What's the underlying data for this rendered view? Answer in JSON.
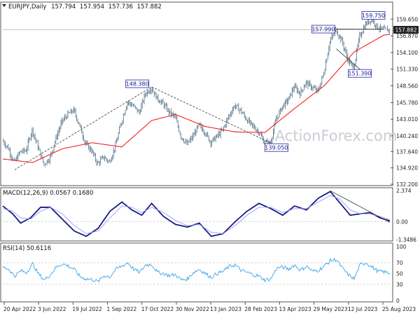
{
  "symbol_header": {
    "symbol": "EURJPY,Daily",
    "open": "157.794",
    "high": "157.954",
    "low": "157.736",
    "close": "157.882"
  },
  "watermark": "ActionForex.com",
  "colors": {
    "candle": "#4a6a80",
    "moving_average": "#ee2222",
    "macd_line": "#1a1a80",
    "signal_line": "#9a9aff",
    "rsi_line": "#3ba5e8",
    "trendline": "#333333",
    "label_border": "#2222aa",
    "label_text": "#1a1a8a",
    "grid_dash": "#cccccc",
    "current_price_box": "#222222"
  },
  "chart_data": [
    {
      "type": "candlestick",
      "panel": "price",
      "interval": "Daily",
      "ylim": [
        132.2,
        161.2
      ],
      "y_ticks": [
        "159.650",
        "156.870",
        "154.100",
        "151.330",
        "148.560",
        "145.780",
        "143.010",
        "140.240",
        "137.640",
        "134.920",
        "132.200"
      ],
      "x_ticks": [
        "20 Apr 2022",
        "3 Jun 2022",
        "19 Jul 2022",
        "1 Sep 2022",
        "17 Oct 2022",
        "30 Nov 2022",
        "13 Jan 2023",
        "28 Feb 2023",
        "13 Apr 2023",
        "29 May 2023",
        "12 Jul 2023",
        "25 Aug 2023"
      ],
      "current_price": "157.882",
      "close_path": [
        [
          0,
          139.5
        ],
        [
          6,
          138.2
        ],
        [
          12,
          135.8
        ],
        [
          18,
          137.6
        ],
        [
          24,
          137.8
        ],
        [
          30,
          141.3
        ],
        [
          36,
          138.4
        ],
        [
          42,
          135.5
        ],
        [
          48,
          136.6
        ],
        [
          54,
          139.8
        ],
        [
          60,
          142.6
        ],
        [
          66,
          143.8
        ],
        [
          72,
          144.5
        ],
        [
          78,
          141.9
        ],
        [
          84,
          138.9
        ],
        [
          90,
          137.8
        ],
        [
          96,
          135.6
        ],
        [
          102,
          136.7
        ],
        [
          108,
          135.9
        ],
        [
          114,
          138.6
        ],
        [
          120,
          142.5
        ],
        [
          126,
          145.9
        ],
        [
          132,
          145.2
        ],
        [
          138,
          144.1
        ],
        [
          144,
          147.2
        ],
        [
          150,
          148.2
        ],
        [
          156,
          146.5
        ],
        [
          162,
          145.6
        ],
        [
          168,
          144.2
        ],
        [
          174,
          143.4
        ],
        [
          180,
          140.2
        ],
        [
          186,
          138.8
        ],
        [
          192,
          140.1
        ],
        [
          198,
          142.0
        ],
        [
          204,
          140.9
        ],
        [
          210,
          139.2
        ],
        [
          216,
          140.1
        ],
        [
          222,
          141.2
        ],
        [
          228,
          143.4
        ],
        [
          234,
          145.3
        ],
        [
          240,
          144.5
        ],
        [
          246,
          143.0
        ],
        [
          252,
          141.9
        ],
        [
          258,
          141.0
        ],
        [
          264,
          139.1
        ],
        [
          270,
          139.0
        ],
        [
          276,
          143.0
        ],
        [
          282,
          145.1
        ],
        [
          288,
          146.2
        ],
        [
          294,
          148.4
        ],
        [
          300,
          147.3
        ],
        [
          306,
          149.1
        ],
        [
          312,
          148.3
        ],
        [
          318,
          147.6
        ],
        [
          324,
          150.7
        ],
        [
          330,
          155.9
        ],
        [
          336,
          157.9
        ],
        [
          342,
          156.1
        ],
        [
          348,
          153.0
        ],
        [
          354,
          151.4
        ],
        [
          360,
          156.8
        ],
        [
          366,
          158.8
        ],
        [
          372,
          159.7
        ],
        [
          378,
          158.3
        ],
        [
          384,
          157.9
        ],
        [
          390,
          157.88
        ]
      ],
      "candle_series_length": 390,
      "moving_average": {
        "line_path": [
          [
            0,
            136.4
          ],
          [
            30,
            135.8
          ],
          [
            60,
            138.1
          ],
          [
            90,
            139.1
          ],
          [
            120,
            138.4
          ],
          [
            150,
            142.8
          ],
          [
            174,
            143.8
          ],
          [
            204,
            141.8
          ],
          [
            234,
            140.9
          ],
          [
            264,
            140.8
          ],
          [
            294,
            144.8
          ],
          [
            324,
            148.6
          ],
          [
            354,
            154.2
          ],
          [
            384,
            157.0
          ],
          [
            390,
            157.1
          ]
        ]
      },
      "annotations": [
        {
          "label": "148.380",
          "x_index": 150,
          "price": 148.38
        },
        {
          "label": "139.050",
          "x_index": 270,
          "price": 139.05
        },
        {
          "label": "157.990",
          "x_index": 336,
          "price": 157.99
        },
        {
          "label": "151.390",
          "x_index": 354,
          "price": 151.39
        },
        {
          "label": "159.750",
          "x_index": 372,
          "price": 159.75
        }
      ],
      "trendlines": [
        {
          "from": [
            12,
            134.6
          ],
          "to": [
            150,
            148.38
          ],
          "style": "dashed"
        },
        {
          "from": [
            150,
            148.38
          ],
          "to": [
            270,
            139.05
          ],
          "style": "dashed"
        },
        {
          "from": [
            336,
            157.99
          ],
          "to": [
            384,
            158.0
          ],
          "style": "solid"
        },
        {
          "from": [
            336,
            154.7
          ],
          "to": [
            364,
            150.7
          ],
          "style": "solid"
        }
      ]
    },
    {
      "type": "line",
      "panel": "macd",
      "title": "MACD(12,26,9) 0.0567 0.1680",
      "ylim": [
        -1.3486,
        2.374
      ],
      "y_ticks": [
        "2.374",
        "0.00",
        "-1.3486"
      ],
      "series": [
        {
          "name": "MACD",
          "x": [
            0,
            10,
            18,
            28,
            38,
            48,
            60,
            72,
            84,
            96,
            108,
            120,
            130,
            140,
            150,
            162,
            174,
            186,
            198,
            210,
            222,
            234,
            246,
            258,
            270,
            282,
            294,
            306,
            318,
            330,
            340,
            350,
            360,
            370,
            380,
            390
          ],
          "values": [
            1.2,
            0.6,
            -0.1,
            0.3,
            1.1,
            1.1,
            0.2,
            -0.7,
            -1.1,
            -0.5,
            0.8,
            1.5,
            0.9,
            0.5,
            1.4,
            0.4,
            -0.2,
            -0.4,
            -0.1,
            -1.1,
            -0.9,
            0.0,
            0.8,
            1.4,
            1.0,
            0.5,
            1.2,
            0.9,
            1.8,
            2.3,
            1.4,
            0.5,
            0.6,
            0.7,
            0.3,
            0.06
          ]
        },
        {
          "name": "Signal",
          "x": [
            0,
            10,
            18,
            28,
            38,
            48,
            60,
            72,
            84,
            96,
            108,
            120,
            130,
            140,
            150,
            162,
            174,
            186,
            198,
            210,
            222,
            234,
            246,
            258,
            270,
            282,
            294,
            306,
            318,
            330,
            340,
            350,
            360,
            370,
            380,
            390
          ],
          "values": [
            1.0,
            0.8,
            0.3,
            0.2,
            0.8,
            1.1,
            0.6,
            -0.3,
            -0.9,
            -0.7,
            0.3,
            1.2,
            1.1,
            0.7,
            1.1,
            0.7,
            0.1,
            -0.3,
            -0.2,
            -0.8,
            -0.9,
            -0.3,
            0.5,
            1.1,
            1.1,
            0.7,
            1.0,
            1.0,
            1.5,
            2.0,
            1.7,
            0.9,
            0.6,
            0.6,
            0.4,
            0.17
          ]
        }
      ],
      "trendline": {
        "from": [
          330,
          2.35
        ],
        "to": [
          390,
          -0.05
        ]
      }
    },
    {
      "type": "line",
      "panel": "rsi",
      "title": "RSI(14) 50.6116",
      "ylim": [
        0,
        100
      ],
      "y_ticks": [
        "100",
        "70",
        "50",
        "30",
        "0"
      ],
      "series": [
        {
          "name": "RSI",
          "x": [
            0,
            6,
            12,
            18,
            24,
            30,
            36,
            42,
            48,
            54,
            60,
            66,
            72,
            78,
            84,
            90,
            96,
            102,
            108,
            114,
            120,
            126,
            132,
            138,
            144,
            150,
            156,
            162,
            168,
            174,
            180,
            186,
            192,
            198,
            204,
            210,
            216,
            222,
            228,
            234,
            240,
            246,
            252,
            258,
            264,
            270,
            276,
            282,
            288,
            294,
            300,
            306,
            312,
            318,
            324,
            330,
            336,
            342,
            348,
            354,
            360,
            366,
            372,
            378,
            384,
            390
          ],
          "values": [
            62,
            58,
            45,
            55,
            52,
            68,
            49,
            38,
            48,
            62,
            68,
            64,
            58,
            44,
            40,
            39,
            35,
            46,
            44,
            58,
            64,
            70,
            58,
            52,
            66,
            67,
            52,
            50,
            46,
            48,
            38,
            40,
            52,
            58,
            50,
            43,
            50,
            54,
            63,
            66,
            56,
            52,
            48,
            45,
            38,
            40,
            60,
            62,
            58,
            66,
            56,
            64,
            54,
            56,
            64,
            74,
            76,
            60,
            48,
            40,
            66,
            70,
            62,
            54,
            53,
            50.6
          ]
        }
      ]
    }
  ]
}
